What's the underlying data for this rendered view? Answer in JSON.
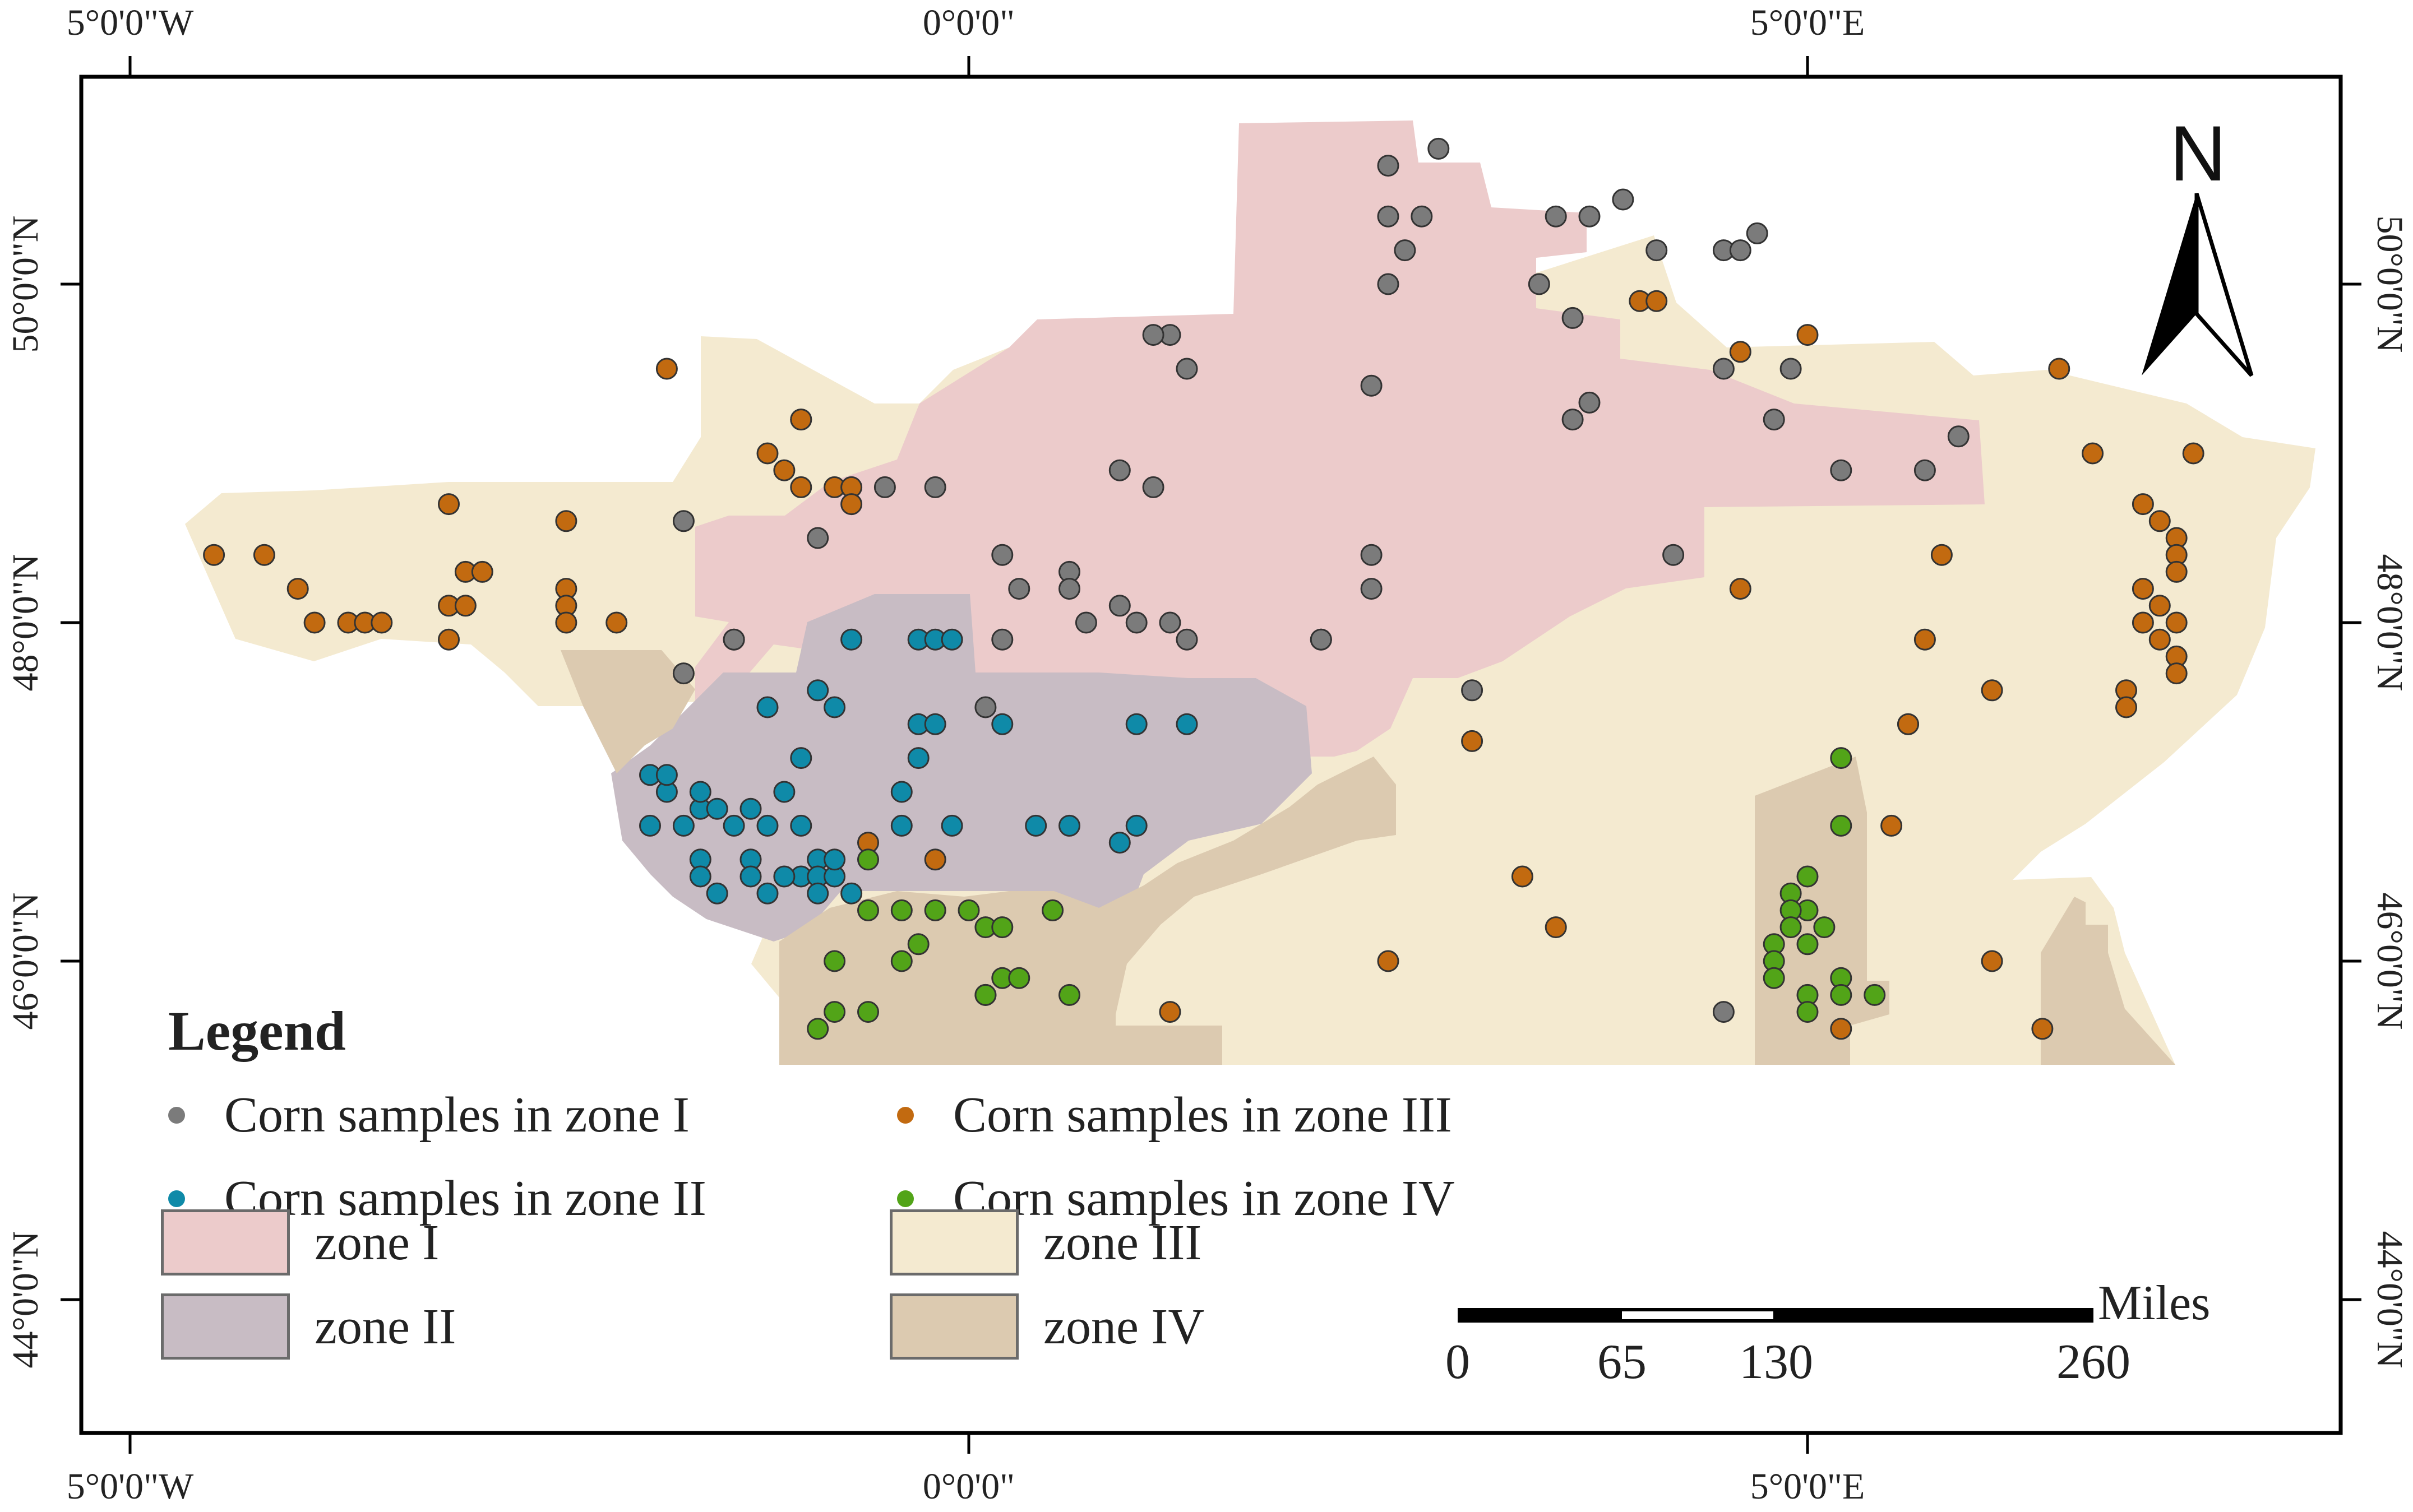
{
  "graticule": {
    "longitude_labels": [
      "5°0'0\"W",
      "0°0'0\"",
      "5°0'0\"E"
    ],
    "latitude_labels": [
      "50°0'0\"N",
      "48°0'0\"N",
      "46°0'0\"N",
      "44°0'0\"N"
    ]
  },
  "north_arrow": {
    "letter": "N"
  },
  "legend": {
    "title": "Legend",
    "samples": [
      {
        "label": "Corn samples in zone I",
        "color": "#7b7b7b"
      },
      {
        "label": "Corn samples in zone II",
        "color": "#0f8aa8"
      },
      {
        "label": "Corn samples in zone III",
        "color": "#c26a10"
      },
      {
        "label": "Corn samples in zone IV",
        "color": "#52a418"
      }
    ],
    "zones": [
      {
        "label": "zone I",
        "color": "#eccbcb"
      },
      {
        "label": "zone II",
        "color": "#c8bcc4"
      },
      {
        "label": "zone III",
        "color": "#f4ead0"
      },
      {
        "label": "zone IV",
        "color": "#dccab0"
      }
    ]
  },
  "scale_bar": {
    "units": "Miles",
    "labels": [
      "0",
      "65",
      "130",
      "260"
    ]
  },
  "samples": {
    "zone_I": [
      [
        2.5,
        50.7
      ],
      [
        2.8,
        50.8
      ],
      [
        2.5,
        50.4
      ],
      [
        2.7,
        50.4
      ],
      [
        3.5,
        50.4
      ],
      [
        3.9,
        50.5
      ],
      [
        4.7,
        50.3
      ],
      [
        3.7,
        50.4
      ],
      [
        2.6,
        50.2
      ],
      [
        4.1,
        50.2
      ],
      [
        3.4,
        50.0
      ],
      [
        4.5,
        50.2
      ],
      [
        2.5,
        50.0
      ],
      [
        4.6,
        50.2
      ],
      [
        3.6,
        49.8
      ],
      [
        1.2,
        49.7
      ],
      [
        1.1,
        49.7
      ],
      [
        1.3,
        49.5
      ],
      [
        2.4,
        49.4
      ],
      [
        4.5,
        49.5
      ],
      [
        4.9,
        49.5
      ],
      [
        3.7,
        49.3
      ],
      [
        3.6,
        49.2
      ],
      [
        4.8,
        49.2
      ],
      [
        0.9,
        48.9
      ],
      [
        -0.5,
        48.8
      ],
      [
        -0.2,
        48.8
      ],
      [
        1.1,
        48.8
      ],
      [
        -1.7,
        48.6
      ],
      [
        -0.9,
        48.5
      ],
      [
        0.2,
        48.4
      ],
      [
        0.6,
        48.3
      ],
      [
        2.4,
        48.4
      ],
      [
        4.2,
        48.4
      ],
      [
        0.3,
        48.2
      ],
      [
        0.6,
        48.2
      ],
      [
        0.9,
        48.1
      ],
      [
        1.0,
        48.0
      ],
      [
        2.4,
        48.2
      ],
      [
        1.2,
        48.0
      ],
      [
        0.7,
        48.0
      ],
      [
        1.3,
        47.9
      ],
      [
        2.1,
        47.9
      ],
      [
        -1.4,
        47.9
      ],
      [
        0.2,
        47.9
      ],
      [
        2.1,
        47.9
      ],
      [
        -1.7,
        47.7
      ],
      [
        3.0,
        47.6
      ],
      [
        0.1,
        47.5
      ],
      [
        -1.4,
        47.9
      ],
      [
        5.2,
        48.9
      ],
      [
        5.7,
        48.9
      ],
      [
        5.9,
        49.1
      ],
      [
        4.5,
        45.7
      ]
    ],
    "zone_II": [
      [
        -0.7,
        47.9
      ],
      [
        -0.3,
        47.9
      ],
      [
        -0.2,
        47.9
      ],
      [
        -0.1,
        47.9
      ],
      [
        -1.2,
        47.5
      ],
      [
        -0.8,
        47.5
      ],
      [
        -0.9,
        47.6
      ],
      [
        -0.3,
        47.4
      ],
      [
        -0.2,
        47.4
      ],
      [
        0.2,
        47.4
      ],
      [
        1.0,
        47.4
      ],
      [
        1.3,
        47.4
      ],
      [
        -0.3,
        47.2
      ],
      [
        -1.0,
        47.2
      ],
      [
        -1.1,
        47.0
      ],
      [
        -1.8,
        47.0
      ],
      [
        -1.9,
        47.1
      ],
      [
        -1.6,
        46.9
      ],
      [
        -1.3,
        46.9
      ],
      [
        -1.5,
        46.9
      ],
      [
        -1.7,
        46.8
      ],
      [
        -1.9,
        46.8
      ],
      [
        -1.4,
        46.8
      ],
      [
        -1.2,
        46.8
      ],
      [
        -1.0,
        46.8
      ],
      [
        -0.4,
        46.8
      ],
      [
        -0.1,
        46.8
      ],
      [
        0.4,
        46.8
      ],
      [
        0.6,
        46.8
      ],
      [
        0.9,
        46.7
      ],
      [
        -1.6,
        46.6
      ],
      [
        -1.3,
        46.6
      ],
      [
        -1.0,
        46.5
      ],
      [
        -0.9,
        46.6
      ],
      [
        -0.9,
        46.5
      ],
      [
        -0.8,
        46.5
      ],
      [
        -0.8,
        46.6
      ],
      [
        -1.1,
        46.5
      ],
      [
        -1.3,
        46.5
      ],
      [
        -1.6,
        46.5
      ],
      [
        -1.5,
        46.4
      ],
      [
        -1.2,
        46.4
      ],
      [
        -0.9,
        46.4
      ],
      [
        -0.7,
        46.4
      ],
      [
        -1.8,
        47.1
      ],
      [
        -1.6,
        47.0
      ],
      [
        1.0,
        46.8
      ],
      [
        -0.4,
        47.0
      ]
    ],
    "zone_III": [
      [
        -4.5,
        48.4
      ],
      [
        -4.2,
        48.4
      ],
      [
        -4.0,
        48.2
      ],
      [
        -3.1,
        48.7
      ],
      [
        -2.4,
        48.6
      ],
      [
        -3.0,
        48.3
      ],
      [
        -2.9,
        48.3
      ],
      [
        -2.4,
        48.2
      ],
      [
        -2.4,
        48.1
      ],
      [
        -2.1,
        48.0
      ],
      [
        -3.1,
        48.1
      ],
      [
        -3.0,
        48.1
      ],
      [
        -2.4,
        48.0
      ],
      [
        -3.7,
        48.0
      ],
      [
        -3.6,
        48.0
      ],
      [
        -3.5,
        48.0
      ],
      [
        -3.9,
        48.0
      ],
      [
        -3.1,
        47.9
      ],
      [
        -1.8,
        49.5
      ],
      [
        -1.2,
        49.0
      ],
      [
        -1.0,
        49.2
      ],
      [
        -1.0,
        49.2
      ],
      [
        -1.1,
        48.9
      ],
      [
        -1.0,
        48.8
      ],
      [
        -0.8,
        48.8
      ],
      [
        -0.7,
        48.8
      ],
      [
        -0.7,
        48.7
      ],
      [
        4.0,
        49.9
      ],
      [
        4.1,
        49.9
      ],
      [
        4.6,
        49.6
      ],
      [
        5.0,
        49.7
      ],
      [
        6.5,
        49.5
      ],
      [
        6.7,
        49.0
      ],
      [
        7.3,
        49.0
      ],
      [
        7.0,
        48.7
      ],
      [
        7.1,
        48.6
      ],
      [
        7.2,
        48.5
      ],
      [
        7.2,
        48.4
      ],
      [
        7.2,
        48.3
      ],
      [
        7.0,
        48.2
      ],
      [
        7.1,
        48.1
      ],
      [
        7.2,
        48.0
      ],
      [
        7.0,
        48.0
      ],
      [
        7.1,
        47.9
      ],
      [
        7.2,
        47.8
      ],
      [
        7.2,
        47.7
      ],
      [
        6.9,
        47.6
      ],
      [
        6.9,
        47.5
      ],
      [
        5.8,
        48.4
      ],
      [
        5.7,
        47.9
      ],
      [
        4.6,
        48.2
      ],
      [
        3.0,
        47.3
      ],
      [
        5.6,
        47.4
      ],
      [
        5.6,
        47.4
      ],
      [
        6.1,
        47.6
      ],
      [
        5.5,
        46.8
      ],
      [
        -0.6,
        46.7
      ],
      [
        -0.2,
        46.6
      ],
      [
        3.3,
        46.5
      ],
      [
        3.5,
        46.2
      ],
      [
        2.5,
        46.0
      ],
      [
        6.1,
        46.0
      ],
      [
        6.4,
        45.6
      ],
      [
        5.2,
        45.6
      ],
      [
        1.2,
        45.7
      ]
    ],
    "zone_IV": [
      [
        5.2,
        47.2
      ],
      [
        5.2,
        46.8
      ],
      [
        -0.6,
        46.6
      ],
      [
        5.0,
        46.5
      ],
      [
        4.9,
        46.4
      ],
      [
        5.0,
        46.3
      ],
      [
        4.9,
        46.3
      ],
      [
        5.1,
        46.2
      ],
      [
        4.9,
        46.2
      ],
      [
        -0.6,
        46.3
      ],
      [
        -0.4,
        46.3
      ],
      [
        -0.2,
        46.3
      ],
      [
        0.0,
        46.3
      ],
      [
        0.1,
        46.2
      ],
      [
        0.2,
        46.2
      ],
      [
        0.5,
        46.3
      ],
      [
        -0.3,
        46.1
      ],
      [
        4.8,
        46.1
      ],
      [
        5.0,
        46.1
      ],
      [
        -0.8,
        46.0
      ],
      [
        -0.4,
        46.0
      ],
      [
        0.2,
        45.9
      ],
      [
        0.3,
        45.9
      ],
      [
        4.8,
        46.0
      ],
      [
        4.8,
        45.9
      ],
      [
        5.2,
        45.9
      ],
      [
        5.2,
        45.8
      ],
      [
        5.4,
        45.8
      ],
      [
        5.0,
        45.8
      ],
      [
        5.0,
        45.7
      ],
      [
        0.1,
        45.8
      ],
      [
        0.6,
        45.8
      ],
      [
        -0.8,
        45.7
      ],
      [
        -0.6,
        45.7
      ],
      [
        -0.9,
        45.6
      ],
      [
        0.1,
        45.8
      ]
    ]
  }
}
